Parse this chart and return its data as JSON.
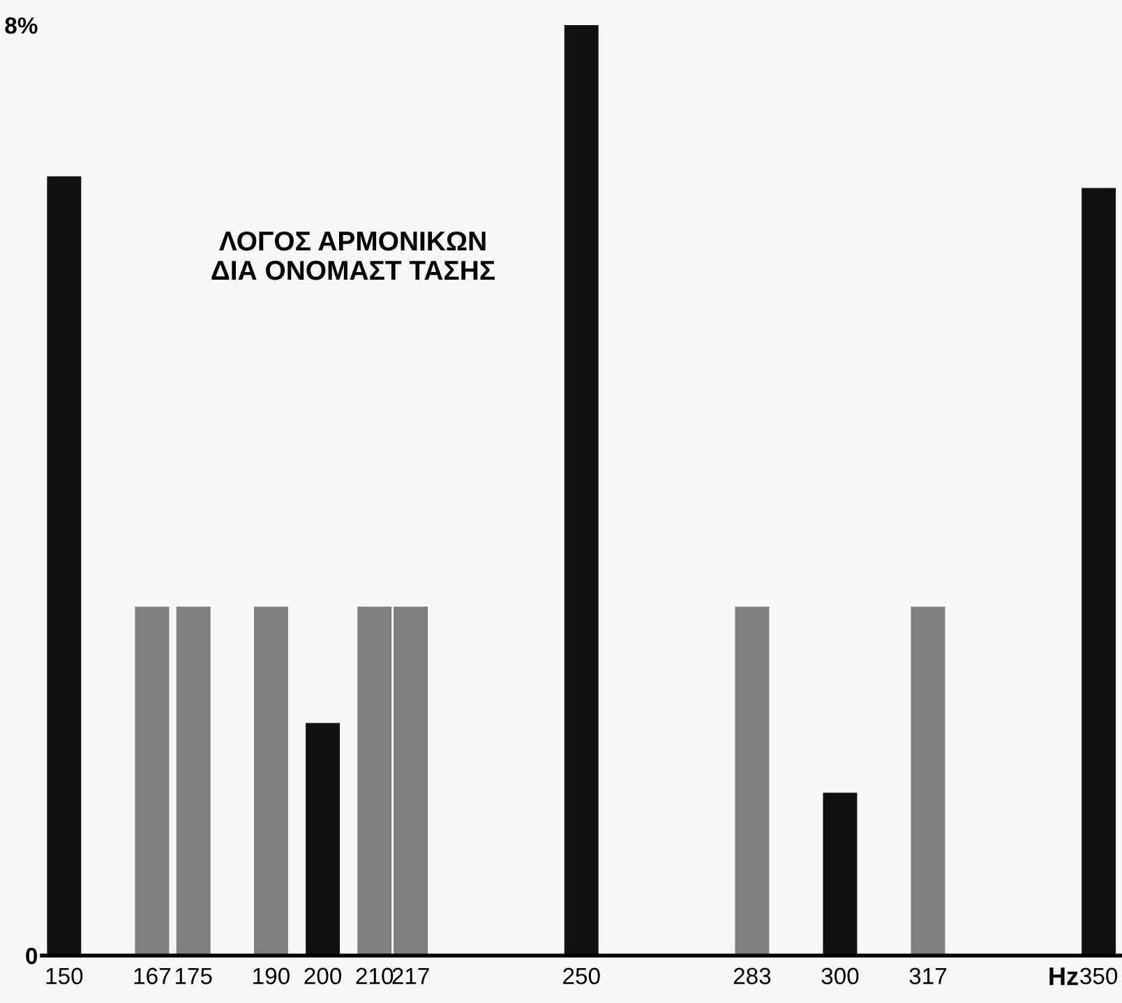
{
  "chart_data": {
    "type": "bar",
    "x": [
      150,
      167,
      175,
      190,
      200,
      210,
      217,
      250,
      283,
      300,
      317,
      350
    ],
    "values": [
      6.7,
      3,
      3,
      3,
      2,
      3,
      3,
      8,
      3,
      1.4,
      3,
      6.6
    ],
    "colors": [
      "#111111",
      "#7f7f7f",
      "#7f7f7f",
      "#7f7f7f",
      "#111111",
      "#7f7f7f",
      "#7f7f7f",
      "#111111",
      "#7f7f7f",
      "#111111",
      "#7f7f7f",
      "#111111"
    ],
    "xlim": [
      145.7,
      354.5
    ],
    "xticks": [
      150,
      167,
      175,
      190,
      200,
      210,
      217,
      250,
      283,
      300,
      317,
      350
    ],
    "ylim": [
      0,
      8
    ],
    "yticks": [
      {
        "value": 0,
        "label": "0"
      },
      {
        "value": 8,
        "label": "8%"
      }
    ],
    "xlabel": "Hz",
    "grid": false,
    "legend": false,
    "annotations": [
      "ΛΟΓΟΣ ΑΡΜΟΝΙΚΩΝ\nΔΙΑ ΟΝΟΜΑΣΤ ΤΑΣΗΣ"
    ]
  }
}
